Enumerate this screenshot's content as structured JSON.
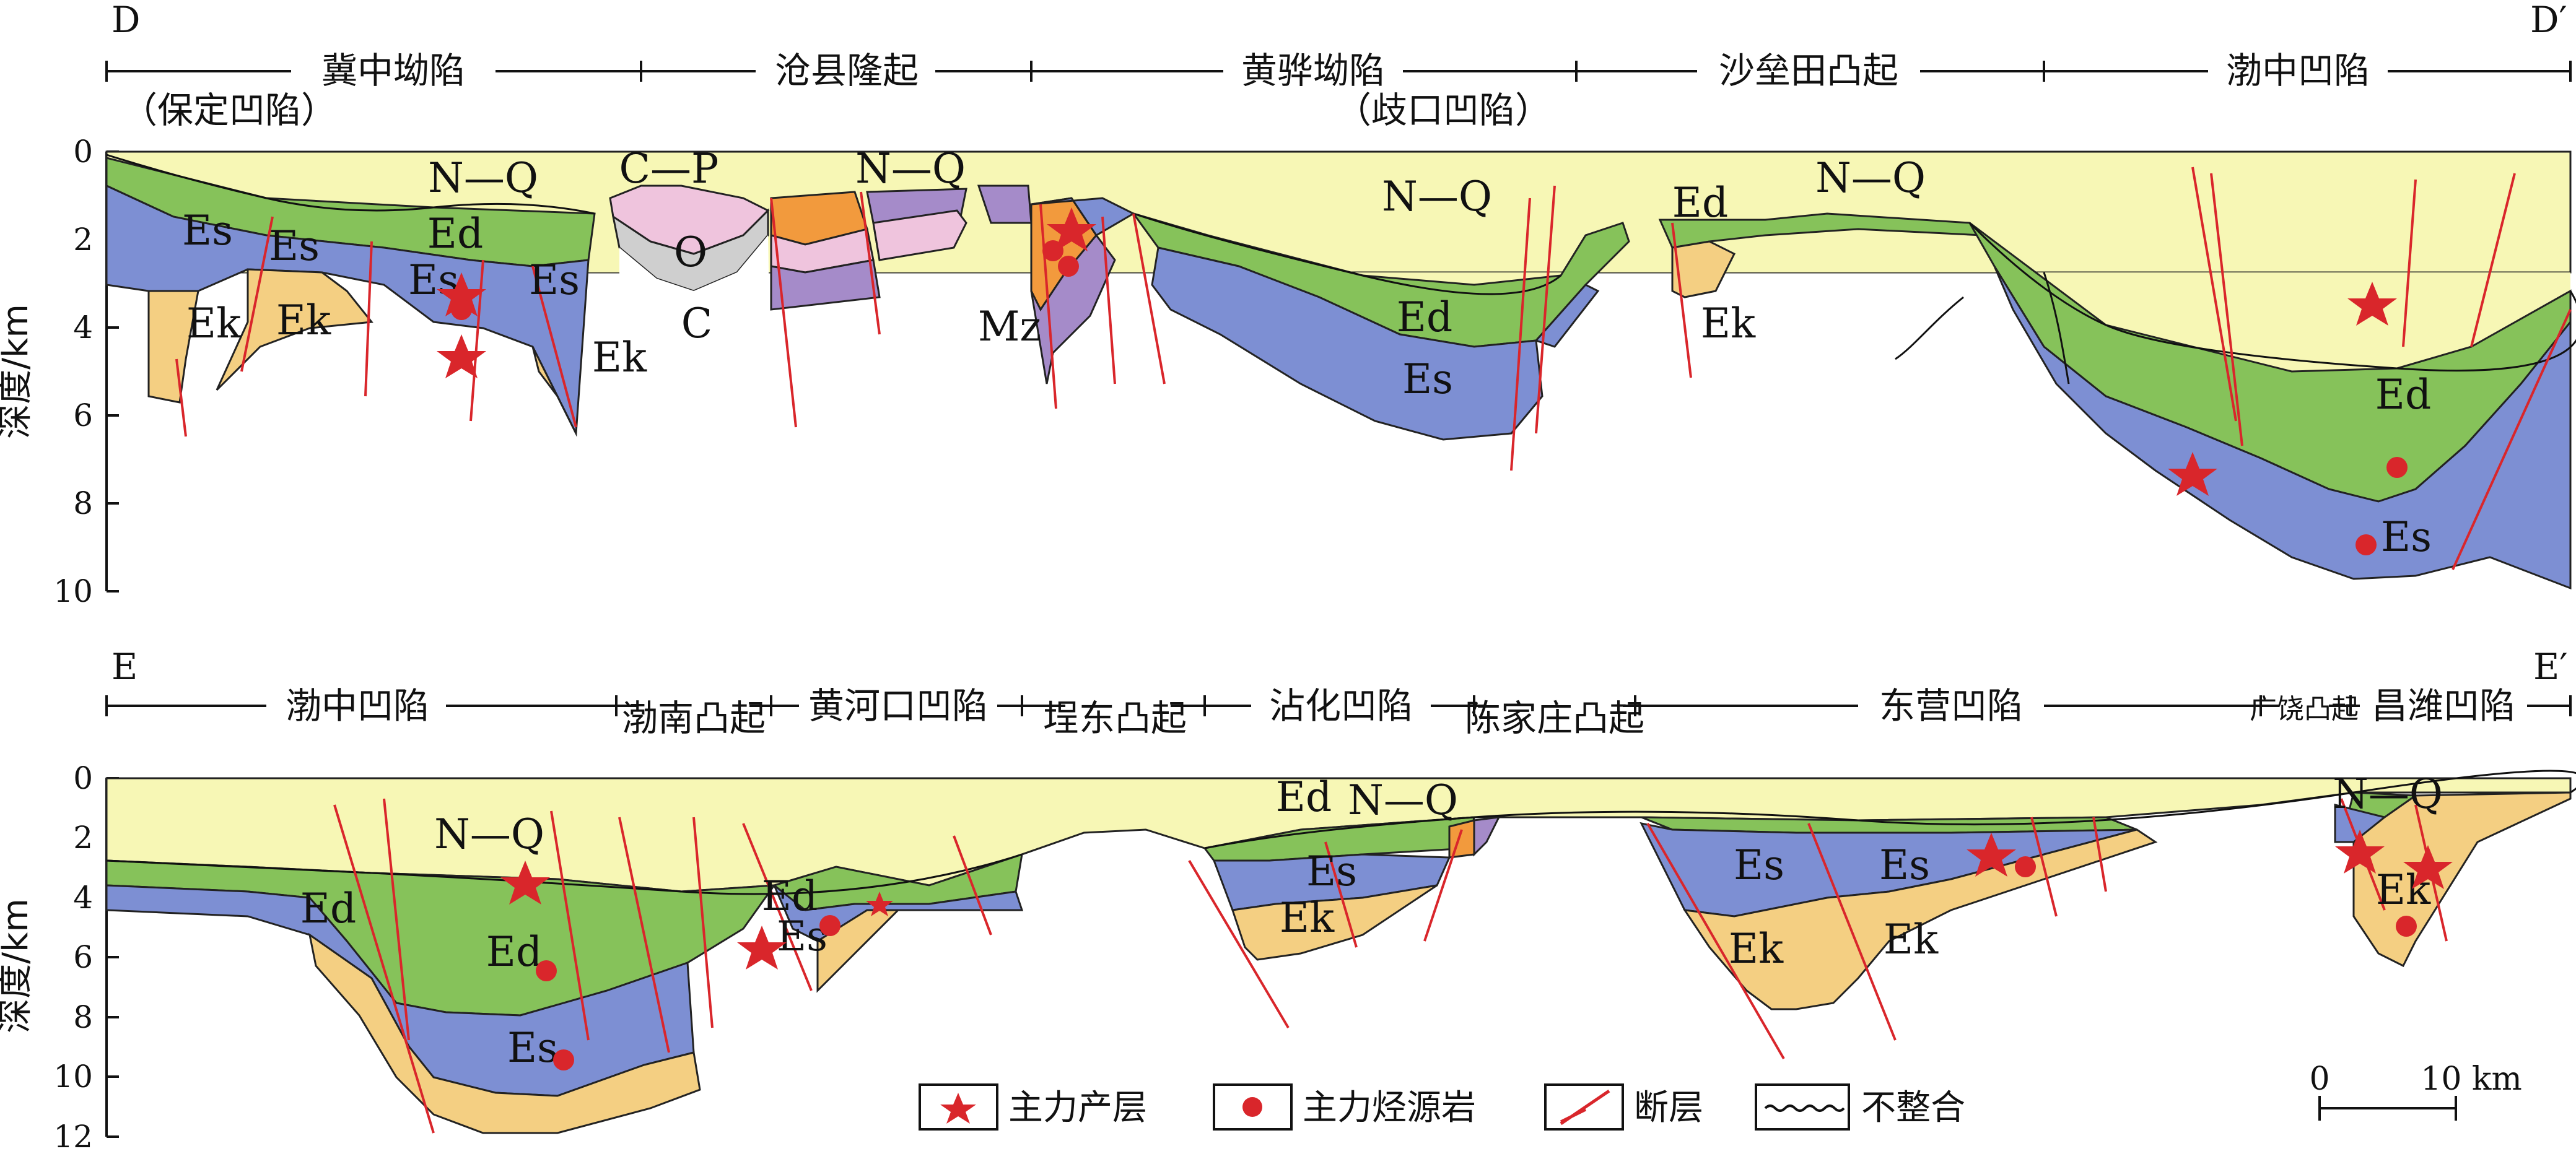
{
  "section_top": {
    "start_label": "D",
    "end_label": "D′",
    "regions": [
      {
        "name": "冀中坳陷",
        "sub": "（保定凹陷）"
      },
      {
        "name": "沧县隆起"
      },
      {
        "name": "黄骅坳陷",
        "sub": "（歧口凹陷）"
      },
      {
        "name": "沙垒田凸起"
      },
      {
        "name": "渤中凹陷"
      }
    ],
    "depth_axis": {
      "label": "深度/km",
      "ticks": [
        "0",
        "2",
        "4",
        "6",
        "8",
        "10"
      ]
    },
    "formation_labels": [
      "N—Q",
      "Ed",
      "Es",
      "Ek",
      "C—P",
      "O",
      "Mz",
      "N—Q",
      "Ed",
      "Es",
      "N—Q",
      "Ed",
      "Ek",
      "N—Q",
      "Ed",
      "Es",
      "Es",
      "Ek",
      "Es",
      "Es",
      "Ek",
      "C"
    ]
  },
  "section_bottom": {
    "start_label": "E",
    "end_label": "E′",
    "regions": [
      {
        "name": "渤中凹陷"
      },
      {
        "name": "渤南凸起"
      },
      {
        "name": "黄河口凹陷"
      },
      {
        "name": "埕东凸起"
      },
      {
        "name": "沾化凹陷"
      },
      {
        "name": "陈家庄凸起"
      },
      {
        "name": "东营凹陷"
      },
      {
        "name": "广饶凸起"
      },
      {
        "name": "昌潍凹陷"
      }
    ],
    "depth_axis": {
      "label": "深度/km",
      "ticks": [
        "0",
        "2",
        "4",
        "6",
        "8",
        "10",
        "12"
      ]
    },
    "formation_labels": [
      "N—Q",
      "Ed",
      "Ed",
      "Es",
      "Ed",
      "Es",
      "Ed",
      "N—Q",
      "Es",
      "Ek",
      "Es",
      "Es",
      "Ek",
      "Ek",
      "N—Q",
      "Ek"
    ]
  },
  "legend": {
    "items": [
      {
        "symbol": "star-icon",
        "label": "主力产层"
      },
      {
        "symbol": "dot-icon",
        "label": "主力烃源岩"
      },
      {
        "symbol": "fault-icon",
        "label": "断层"
      },
      {
        "symbol": "unconformity-icon",
        "label": "不整合"
      }
    ]
  },
  "scale_bar": {
    "start": "0",
    "end": "10 km"
  },
  "colors": {
    "NQ": "#f7f7b5",
    "Ed": "#86c25a",
    "Es": "#7d8fd3",
    "Ek": "#f4cf82",
    "CP": "#efc4dd",
    "O": "#cfcfcf",
    "Mz_orange": "#f29a3d",
    "Mz_purple": "#a58bc9",
    "fault": "#d9262b",
    "marker": "#d9262b"
  }
}
